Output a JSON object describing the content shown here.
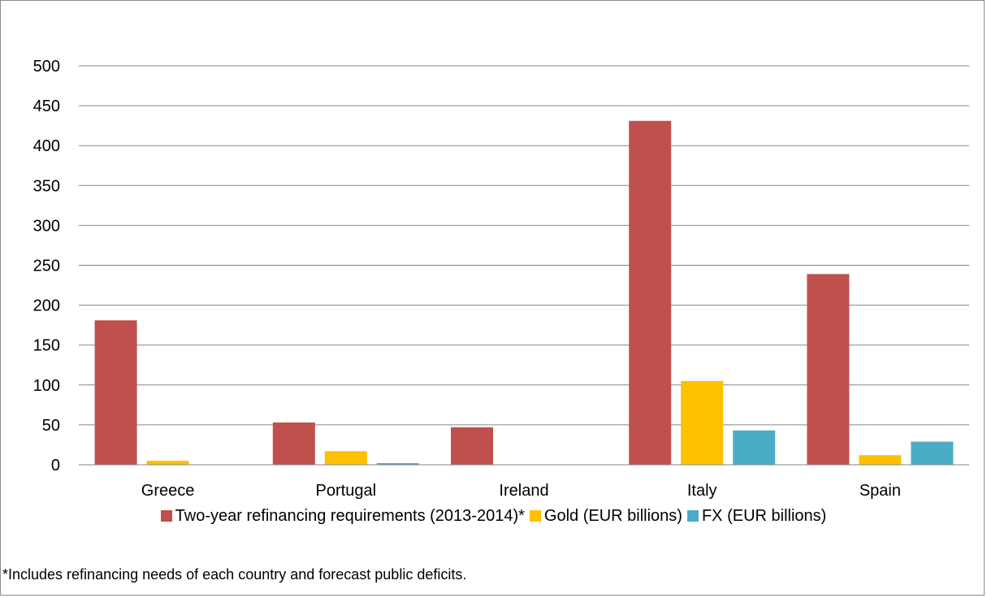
{
  "chart_data": {
    "type": "bar",
    "title": "",
    "xlabel": "",
    "ylabel": "",
    "ylim": [
      0,
      500
    ],
    "yticks": [
      0,
      50,
      100,
      150,
      200,
      250,
      300,
      350,
      400,
      450,
      500
    ],
    "grid": true,
    "legend_position": "bottom",
    "categories": [
      "Greece",
      "Portugal",
      "Ireland",
      "Italy",
      "Spain"
    ],
    "series": [
      {
        "name": "Two-year refinancing requirements (2013-2014)*",
        "color": "#c0504d",
        "values": [
          181,
          53,
          47,
          431,
          239
        ]
      },
      {
        "name": "Gold (EUR billions)",
        "color": "#ffc000",
        "values": [
          5,
          17,
          0,
          105,
          12
        ]
      },
      {
        "name": "FX (EUR billions)",
        "color": "#4bacc6",
        "values": [
          0,
          2,
          0,
          43,
          29
        ]
      }
    ],
    "footnote": "*Includes refinancing needs of each country and forecast public deficits."
  }
}
